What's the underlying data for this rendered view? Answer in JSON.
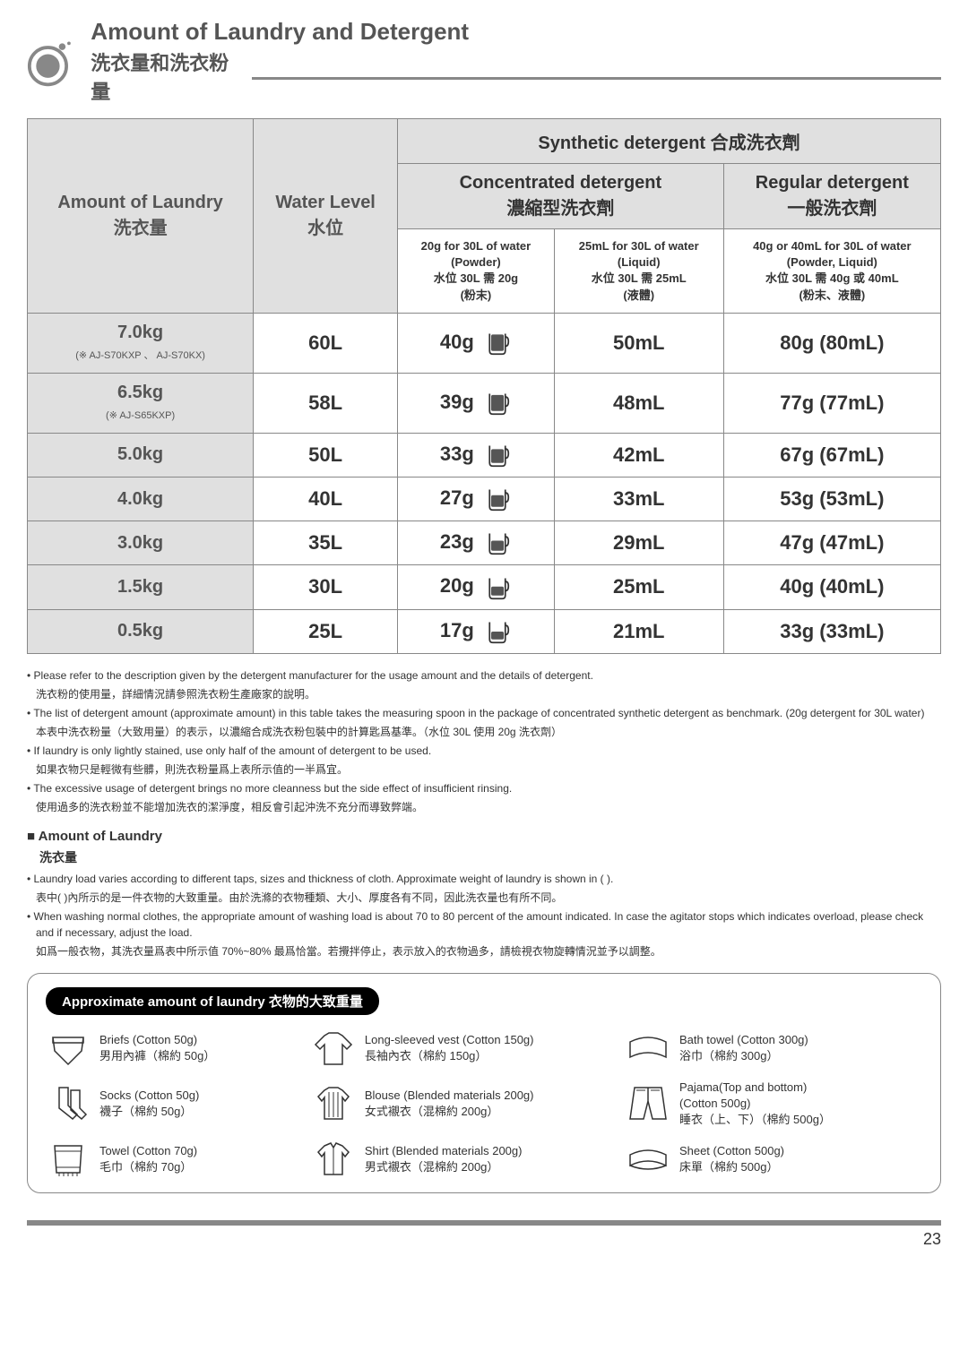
{
  "title_en": "Amount of Laundry and Detergent",
  "title_zh": "洗衣量和洗衣粉量",
  "table": {
    "amount_label": "Amount of Laundry",
    "amount_label_zh": "洗衣量",
    "water_label": "Water Level",
    "water_label_zh": "水位",
    "synth_label": "Synthetic detergent 合成洗衣劑",
    "conc_label": "Concentrated detergent",
    "conc_label_zh": "濃縮型洗衣劑",
    "reg_label": "Regular detergent",
    "reg_label_zh": "一般洗衣劑",
    "col1_en": "20g for 30L of water",
    "col1_l2": "(Powder)",
    "col1_zh": "水位 30L 需 20g",
    "col1_zh2": "(粉末)",
    "col2_en": "25mL for 30L of water",
    "col2_l2": "(Liquid)",
    "col2_zh": "水位 30L 需 25mL",
    "col2_zh2": "(液體)",
    "col3_en": "40g or 40mL for 30L of water",
    "col3_l2": "(Powder, Liquid)",
    "col3_zh": "水位 30L 需 40g 或 40mL",
    "col3_zh2": "(粉末、液體)",
    "rows": [
      {
        "kg": "7.0kg",
        "note": "(※ AJ-S70KXP 、 AJ-S70KX)",
        "water": "60L",
        "p": "40g",
        "l": "50mL",
        "r": "80g (80mL)"
      },
      {
        "kg": "6.5kg",
        "note": "(※ AJ-S65KXP)",
        "water": "58L",
        "p": "39g",
        "l": "48mL",
        "r": "77g (77mL)"
      },
      {
        "kg": "5.0kg",
        "note": "",
        "water": "50L",
        "p": "33g",
        "l": "42mL",
        "r": "67g (67mL)"
      },
      {
        "kg": "4.0kg",
        "note": "",
        "water": "40L",
        "p": "27g",
        "l": "33mL",
        "r": "53g (53mL)"
      },
      {
        "kg": "3.0kg",
        "note": "",
        "water": "35L",
        "p": "23g",
        "l": "29mL",
        "r": "47g (47mL)"
      },
      {
        "kg": "1.5kg",
        "note": "",
        "water": "30L",
        "p": "20g",
        "l": "25mL",
        "r": "40g (40mL)"
      },
      {
        "kg": "0.5kg",
        "note": "",
        "water": "25L",
        "p": "17g",
        "l": "21mL",
        "r": "33g (33mL)"
      }
    ]
  },
  "notes": [
    "Please refer to the description given by the detergent manufacturer for the usage amount and the details of detergent.",
    "洗衣粉的使用量，詳細情況請參照洗衣粉生產廠家的說明。",
    "The list of detergent amount (approximate amount) in this table takes the measuring spoon in the package of concentrated synthetic detergent as benchmark. (20g detergent for 30L water)",
    "本表中洗衣粉量（大致用量）的表示，以濃縮合成洗衣粉包裝中的計算匙爲基準。（水位 30L 使用 20g 洗衣劑）",
    "If laundry is only lightly stained, use only half of the amount of detergent to be used.",
    "如果衣物只是輕微有些髒，則洗衣粉量爲上表所示值的一半爲宜。",
    "The excessive usage of detergent brings no more cleanness but the side effect of insufficient rinsing.",
    "使用過多的洗衣粉並不能增加洗衣的潔淨度，相反會引起沖洗不充分而導致弊端。"
  ],
  "section_head": "Amount of Laundry",
  "section_sub": "洗衣量",
  "section_notes": [
    "Laundry load varies according to different taps, sizes and thickness of cloth. Approximate weight of laundry is shown in ( ).",
    "表中( )內所示的是一件衣物的大致重量。由於洗滌的衣物種類、大小、厚度各有不同，因此洗衣量也有所不同。",
    "When washing normal clothes, the appropriate amount of washing load is about 70 to 80 percent of the amount indicated. In case the agitator stops which indicates overload, please check and if necessary, adjust the load.",
    "如爲一般衣物，其洗衣量爲表中所示值 70%~80% 最爲恰當。若攪拌停止，表示放入的衣物過多，請檢視衣物旋轉情況並予以調整。"
  ],
  "approx_title": "Approximate amount of laundry 衣物的大致重量",
  "items": [
    {
      "en": "Briefs (Cotton 50g)",
      "zh": "男用內褲（棉約 50g）"
    },
    {
      "en": "Long-sleeved vest (Cotton 150g)",
      "zh": "長袖內衣（棉約 150g）"
    },
    {
      "en": "Bath towel (Cotton 300g)",
      "zh": "浴巾（棉約 300g）"
    },
    {
      "en": "Socks (Cotton 50g)",
      "zh": "襪子（棉約 50g）"
    },
    {
      "en": "Blouse (Blended materials 200g)",
      "zh": "女式襯衣（混棉約 200g）"
    },
    {
      "en": "Pajama(Top and bottom)",
      "en2": "(Cotton 500g)",
      "zh": "睡衣（上、下）（棉約 500g）"
    },
    {
      "en": "Towel (Cotton 70g)",
      "zh": "毛巾（棉約 70g）"
    },
    {
      "en": "Shirt (Blended materials 200g)",
      "zh": "男式襯衣（混棉約 200g）"
    },
    {
      "en": "Sheet (Cotton 500g)",
      "zh": "床單（棉約 500g）"
    }
  ],
  "page": "23"
}
